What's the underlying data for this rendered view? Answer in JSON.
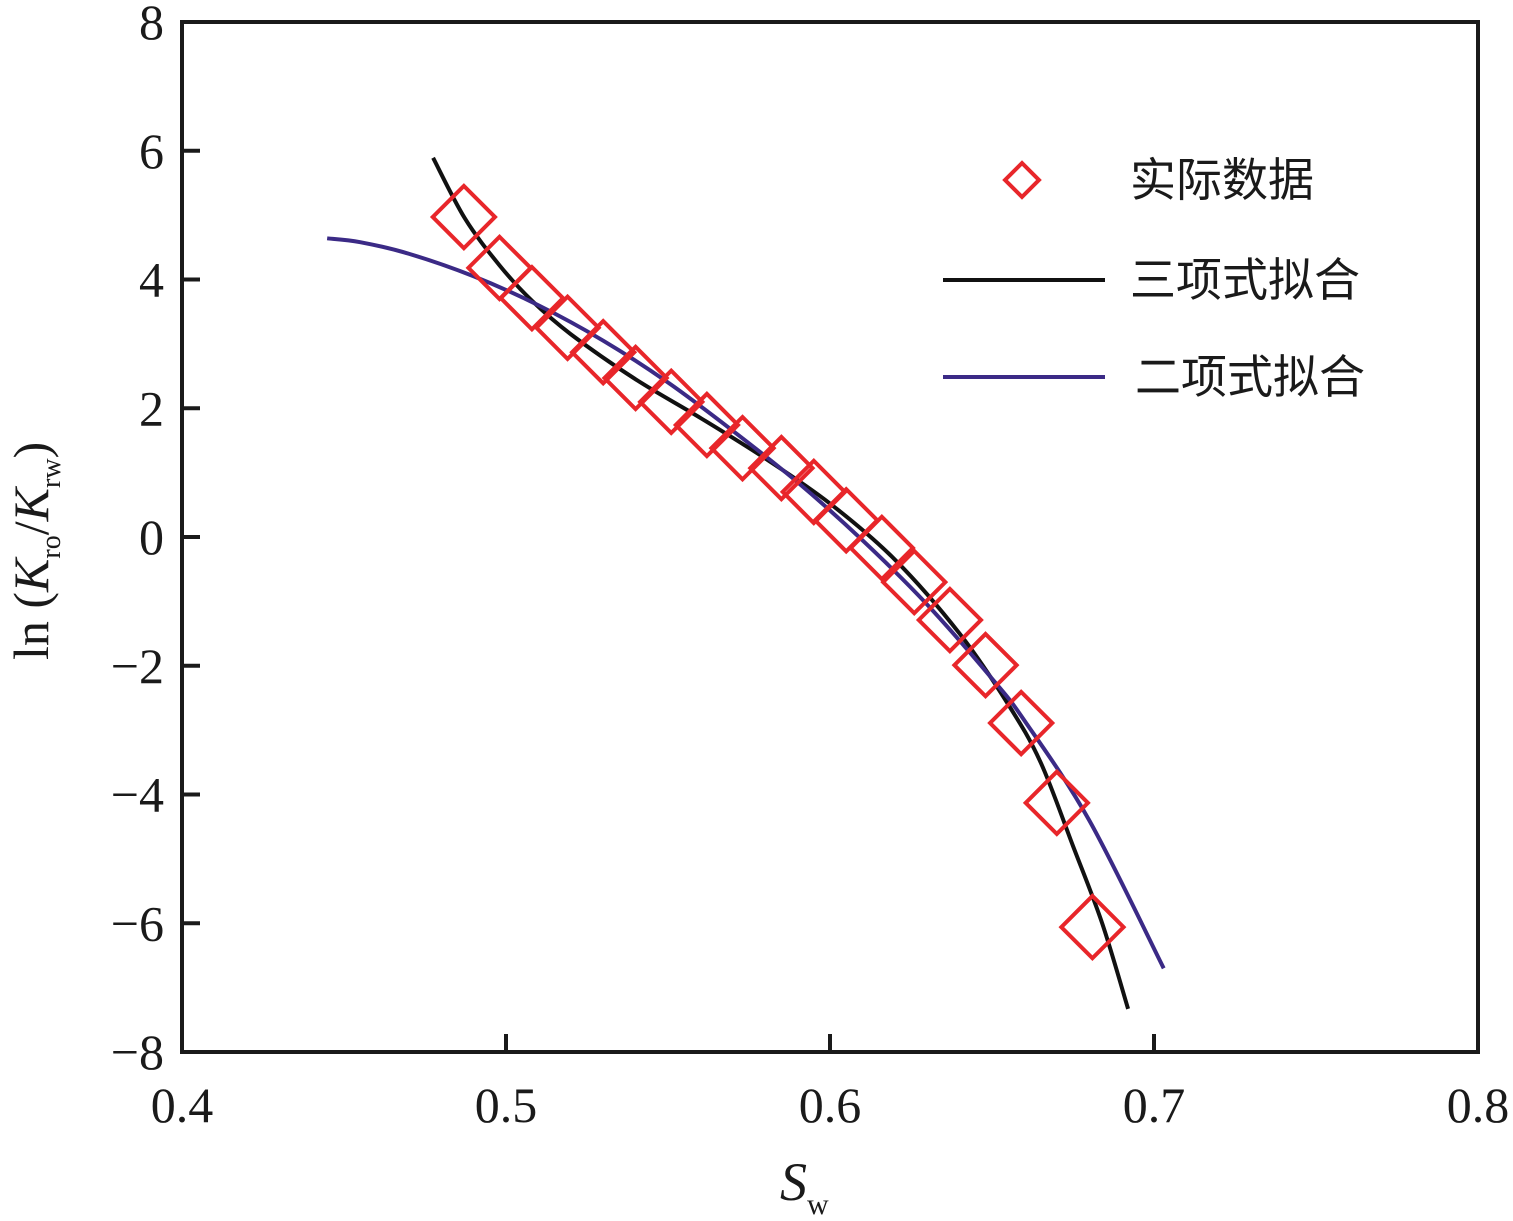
{
  "chart_data": {
    "type": "line",
    "title": "",
    "xlabel": {
      "main": "S",
      "sub": "w"
    },
    "ylabel": {
      "prefix": "ln (",
      "k1": "K",
      "s1": "ro",
      "slash": "/",
      "k2": "K",
      "s2": "rw",
      "suffix": ")"
    },
    "xlim": [
      0.4,
      0.8
    ],
    "ylim": [
      -8,
      8
    ],
    "xticks": [
      "0.4",
      "0.5",
      "0.6",
      "0.7",
      "0.8"
    ],
    "xtick_values": [
      0.4,
      0.5,
      0.6,
      0.7,
      0.8
    ],
    "yticks": [
      "8",
      "6",
      "4",
      "2",
      "0",
      "−2",
      "−4",
      "−6",
      "−8"
    ],
    "ytick_values": [
      8,
      6,
      4,
      2,
      0,
      -2,
      -4,
      -6,
      -8
    ],
    "grid": false,
    "legend_position": "top-right",
    "series": [
      {
        "name": "实际数据",
        "kind": "scatter",
        "marker": "diamond",
        "color": "#e8262a",
        "points": [
          [
            0.487,
            4.97
          ],
          [
            0.498,
            4.18
          ],
          [
            0.508,
            3.71
          ],
          [
            0.519,
            3.25
          ],
          [
            0.53,
            2.87
          ],
          [
            0.54,
            2.47
          ],
          [
            0.551,
            2.1
          ],
          [
            0.562,
            1.74
          ],
          [
            0.573,
            1.38
          ],
          [
            0.585,
            1.07
          ],
          [
            0.595,
            0.7
          ],
          [
            0.605,
            0.26
          ],
          [
            0.616,
            -0.17
          ],
          [
            0.626,
            -0.7
          ],
          [
            0.637,
            -1.29
          ],
          [
            0.648,
            -1.99
          ],
          [
            0.659,
            -2.89
          ],
          [
            0.67,
            -4.13
          ],
          [
            0.681,
            -6.06
          ]
        ]
      },
      {
        "name": "三项式拟合",
        "kind": "line",
        "color": "#111111",
        "points": [
          [
            0.4775,
            5.89
          ],
          [
            0.4873,
            4.95
          ],
          [
            0.498,
            4.22
          ],
          [
            0.508,
            3.67
          ],
          [
            0.52,
            3.15
          ],
          [
            0.54,
            2.45
          ],
          [
            0.56,
            1.85
          ],
          [
            0.58,
            1.22
          ],
          [
            0.6,
            0.52
          ],
          [
            0.62,
            -0.35
          ],
          [
            0.64,
            -1.5
          ],
          [
            0.655,
            -2.6
          ],
          [
            0.665,
            -3.5
          ],
          [
            0.675,
            -4.8
          ],
          [
            0.684,
            -6.0
          ],
          [
            0.692,
            -7.33
          ]
        ]
      },
      {
        "name": "二项式拟合",
        "kind": "line",
        "color": "#3b2a86",
        "points": [
          [
            0.4448,
            4.64
          ],
          [
            0.455,
            4.58
          ],
          [
            0.47,
            4.4
          ],
          [
            0.49,
            4.05
          ],
          [
            0.51,
            3.6
          ],
          [
            0.53,
            3.05
          ],
          [
            0.55,
            2.4
          ],
          [
            0.57,
            1.65
          ],
          [
            0.59,
            0.85
          ],
          [
            0.61,
            -0.05
          ],
          [
            0.63,
            -1.05
          ],
          [
            0.65,
            -2.2
          ],
          [
            0.66,
            -2.85
          ],
          [
            0.68,
            -4.4
          ],
          [
            0.703,
            -6.7
          ]
        ]
      }
    ]
  }
}
